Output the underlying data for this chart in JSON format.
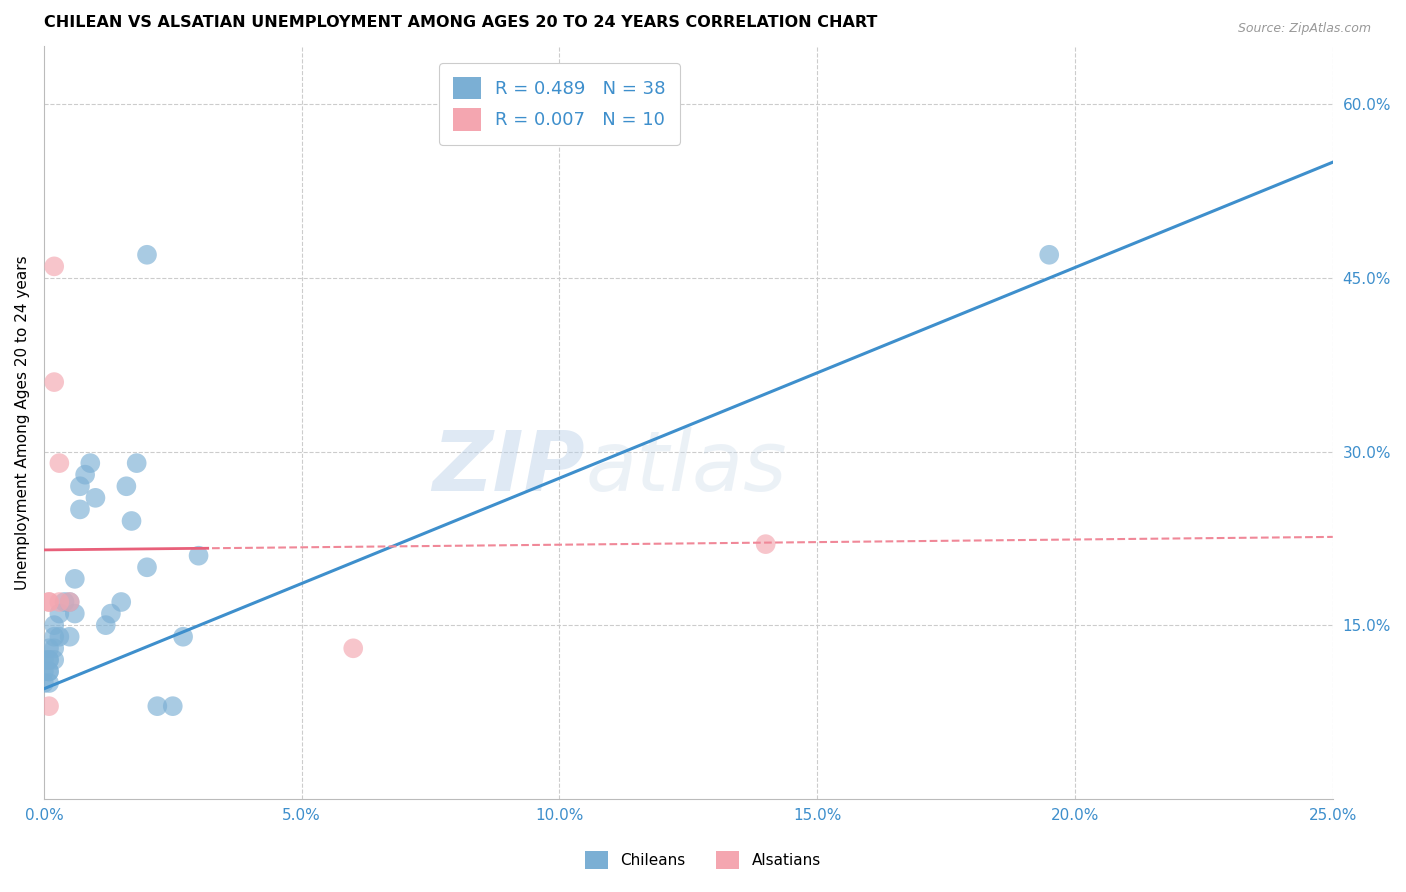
{
  "title": "CHILEAN VS ALSATIAN UNEMPLOYMENT AMONG AGES 20 TO 24 YEARS CORRELATION CHART",
  "source": "Source: ZipAtlas.com",
  "xlabel": "",
  "ylabel": "Unemployment Among Ages 20 to 24 years",
  "xlim": [
    0.0,
    0.25
  ],
  "ylim": [
    0.0,
    0.65
  ],
  "xticks": [
    0.0,
    0.05,
    0.1,
    0.15,
    0.2,
    0.25
  ],
  "yticks_right": [
    0.15,
    0.3,
    0.45,
    0.6
  ],
  "chileans_x": [
    0.0,
    0.0,
    0.0,
    0.001,
    0.001,
    0.001,
    0.001,
    0.001,
    0.001,
    0.002,
    0.002,
    0.002,
    0.002,
    0.003,
    0.003,
    0.004,
    0.005,
    0.005,
    0.006,
    0.006,
    0.007,
    0.007,
    0.008,
    0.009,
    0.01,
    0.012,
    0.013,
    0.015,
    0.016,
    0.017,
    0.018,
    0.02,
    0.022,
    0.025,
    0.027,
    0.03,
    0.02,
    0.195
  ],
  "chileans_y": [
    0.11,
    0.12,
    0.1,
    0.13,
    0.12,
    0.11,
    0.1,
    0.11,
    0.12,
    0.14,
    0.13,
    0.15,
    0.12,
    0.16,
    0.14,
    0.17,
    0.17,
    0.14,
    0.19,
    0.16,
    0.25,
    0.27,
    0.28,
    0.29,
    0.26,
    0.15,
    0.16,
    0.17,
    0.27,
    0.24,
    0.29,
    0.2,
    0.08,
    0.08,
    0.14,
    0.21,
    0.47,
    0.47
  ],
  "alsatians_x": [
    0.001,
    0.001,
    0.001,
    0.002,
    0.002,
    0.003,
    0.003,
    0.005,
    0.06,
    0.14
  ],
  "alsatians_y": [
    0.17,
    0.17,
    0.08,
    0.46,
    0.36,
    0.29,
    0.17,
    0.17,
    0.13,
    0.22
  ],
  "chilean_color": "#7BAFD4",
  "alsatian_color": "#F4A6B0",
  "chilean_line_color": "#3E8FCC",
  "alsatian_line_color": "#E8607A",
  "alsatian_line_dash_color": "#F08898",
  "R_chilean": 0.489,
  "N_chilean": 38,
  "R_alsatian": 0.007,
  "N_alsatian": 10,
  "watermark_zip": "ZIP",
  "watermark_atlas": "atlas",
  "background_color": "#ffffff",
  "grid_color": "#cccccc",
  "chilean_line_intercept": 0.095,
  "chilean_line_slope": 1.82,
  "alsatian_line_intercept": 0.215,
  "alsatian_line_slope": 0.045
}
